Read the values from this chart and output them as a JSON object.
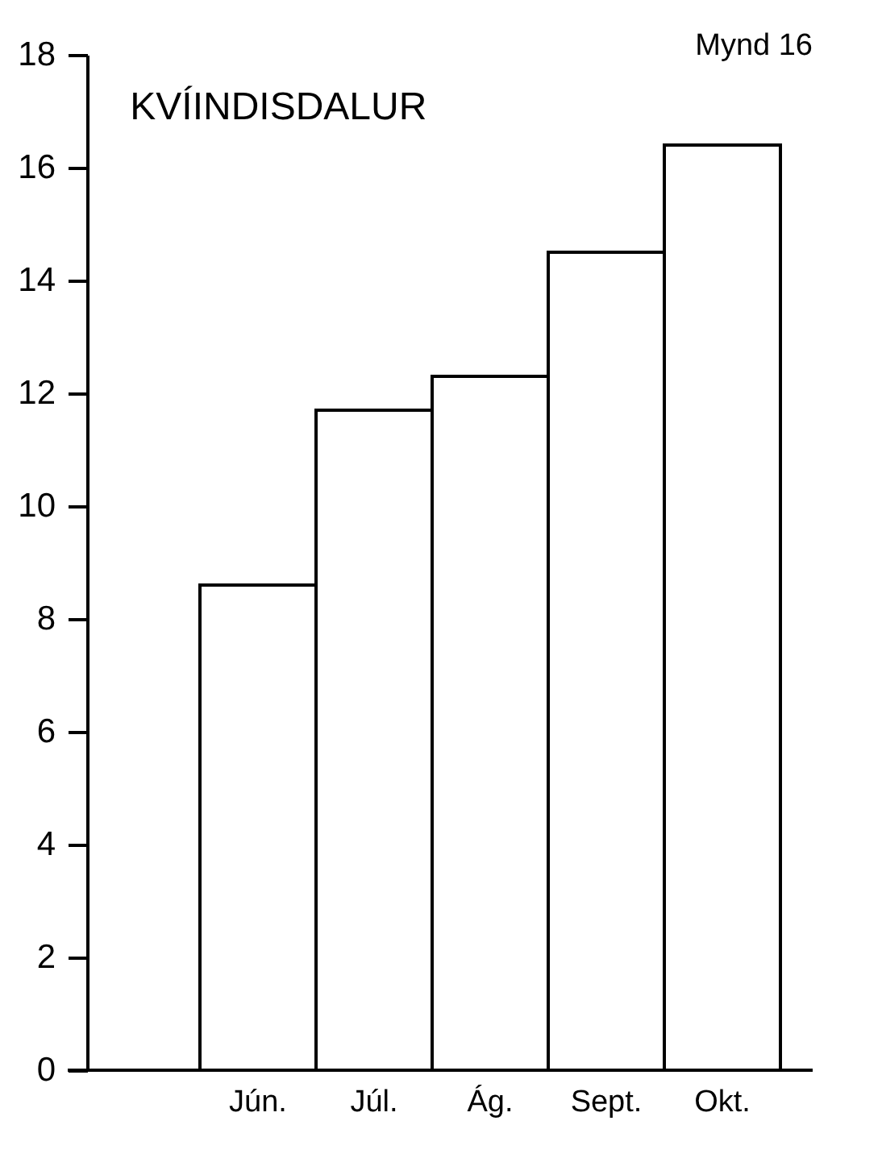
{
  "chart_data": {
    "type": "bar",
    "title": "KVÍINDISDALUR",
    "annotations": [
      "Mynd 16"
    ],
    "categories": [
      "Jún.",
      "Júl.",
      "Ág.",
      "Sept.",
      "Okt."
    ],
    "values": [
      8.6,
      11.7,
      12.3,
      14.5,
      16.4
    ],
    "color": "#ffffff",
    "ylim": [
      0,
      18
    ],
    "yticks": [
      0,
      2,
      4,
      6,
      8,
      10,
      12,
      14,
      16,
      18
    ],
    "grid": false
  }
}
